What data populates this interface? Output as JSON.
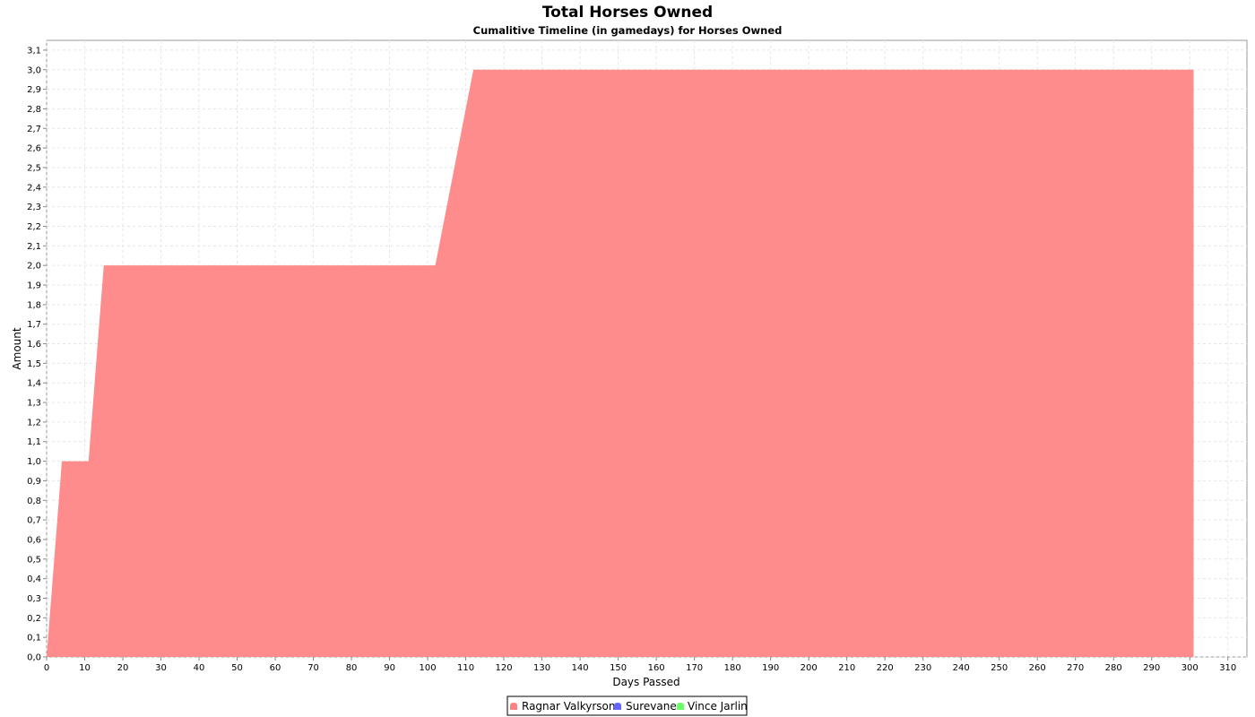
{
  "chart_data": {
    "type": "area",
    "title": "Total Horses Owned",
    "subtitle": "Cumalitive Timeline (in gamedays) for Horses Owned",
    "xlabel": "Days Passed",
    "ylabel": "Amount",
    "xlim": [
      0,
      315
    ],
    "ylim": [
      0,
      3.15
    ],
    "x_ticks": [
      0,
      10,
      20,
      30,
      40,
      50,
      60,
      70,
      80,
      90,
      100,
      110,
      120,
      130,
      140,
      150,
      160,
      170,
      180,
      190,
      200,
      210,
      220,
      230,
      240,
      250,
      260,
      270,
      280,
      290,
      300,
      310
    ],
    "y_ticks": [
      "0,0",
      "0,1",
      "0,2",
      "0,3",
      "0,4",
      "0,5",
      "0,6",
      "0,7",
      "0,8",
      "0,9",
      "1,0",
      "1,1",
      "1,2",
      "1,3",
      "1,4",
      "1,5",
      "1,6",
      "1,7",
      "1,8",
      "1,9",
      "2,0",
      "2,1",
      "2,2",
      "2,3",
      "2,4",
      "2,5",
      "2,6",
      "2,7",
      "2,8",
      "2,9",
      "3,0",
      "3,1"
    ],
    "grid": true,
    "legend_position": "bottom",
    "series": [
      {
        "name": "Ragnar Valkyrson",
        "color": "#ff8080",
        "x": [
          0,
          4,
          11,
          15,
          102,
          112,
          301
        ],
        "y": [
          0,
          1,
          1,
          2,
          2,
          3,
          3
        ]
      },
      {
        "name": "Surevane",
        "color": "#6666ff",
        "x": [],
        "y": []
      },
      {
        "name": "Vince Jarlin",
        "color": "#66ff66",
        "x": [],
        "y": []
      }
    ]
  }
}
